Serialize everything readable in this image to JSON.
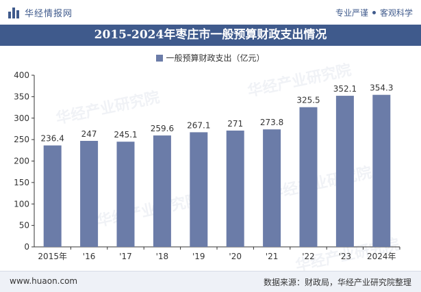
{
  "header": {
    "logo_text": "华经情报网",
    "tagline_1": "专业严谨",
    "tagline_2": "客观科学"
  },
  "title": "2015-2024年枣庄市一般预算财政支出情况",
  "footer": {
    "website": "www.huaon.com",
    "source": "数据来源：财政局，华经产业研究院整理"
  },
  "watermarks": [
    "华经产业研究院",
    "华经产业研究院",
    "华经产业研究院",
    "华经产业研究院",
    "华经产业研究院"
  ],
  "colors": {
    "brand": "#3f5a8c",
    "bar": "#6b7ca8"
  },
  "chart_data": {
    "type": "bar",
    "categories": [
      "2015年",
      "'16",
      "'17",
      "'18",
      "'19",
      "'20",
      "'21",
      "'22",
      "'23",
      "2024年"
    ],
    "series": [
      {
        "name": "一般预算财政支出（亿元）",
        "values": [
          236.4,
          247,
          245.1,
          259.6,
          267.1,
          271,
          273.8,
          325.5,
          352.1,
          354.3
        ]
      }
    ],
    "value_labels": [
      "236.4",
      "247",
      "245.1",
      "259.6",
      "267.1",
      "271",
      "273.8",
      "325.5",
      "352.1",
      "354.3"
    ],
    "yticks": [
      "0",
      "50",
      "100",
      "150",
      "200",
      "250",
      "300",
      "350",
      "400"
    ],
    "ylim": [
      0,
      400
    ],
    "legend_position": "top-center",
    "grid": false
  }
}
